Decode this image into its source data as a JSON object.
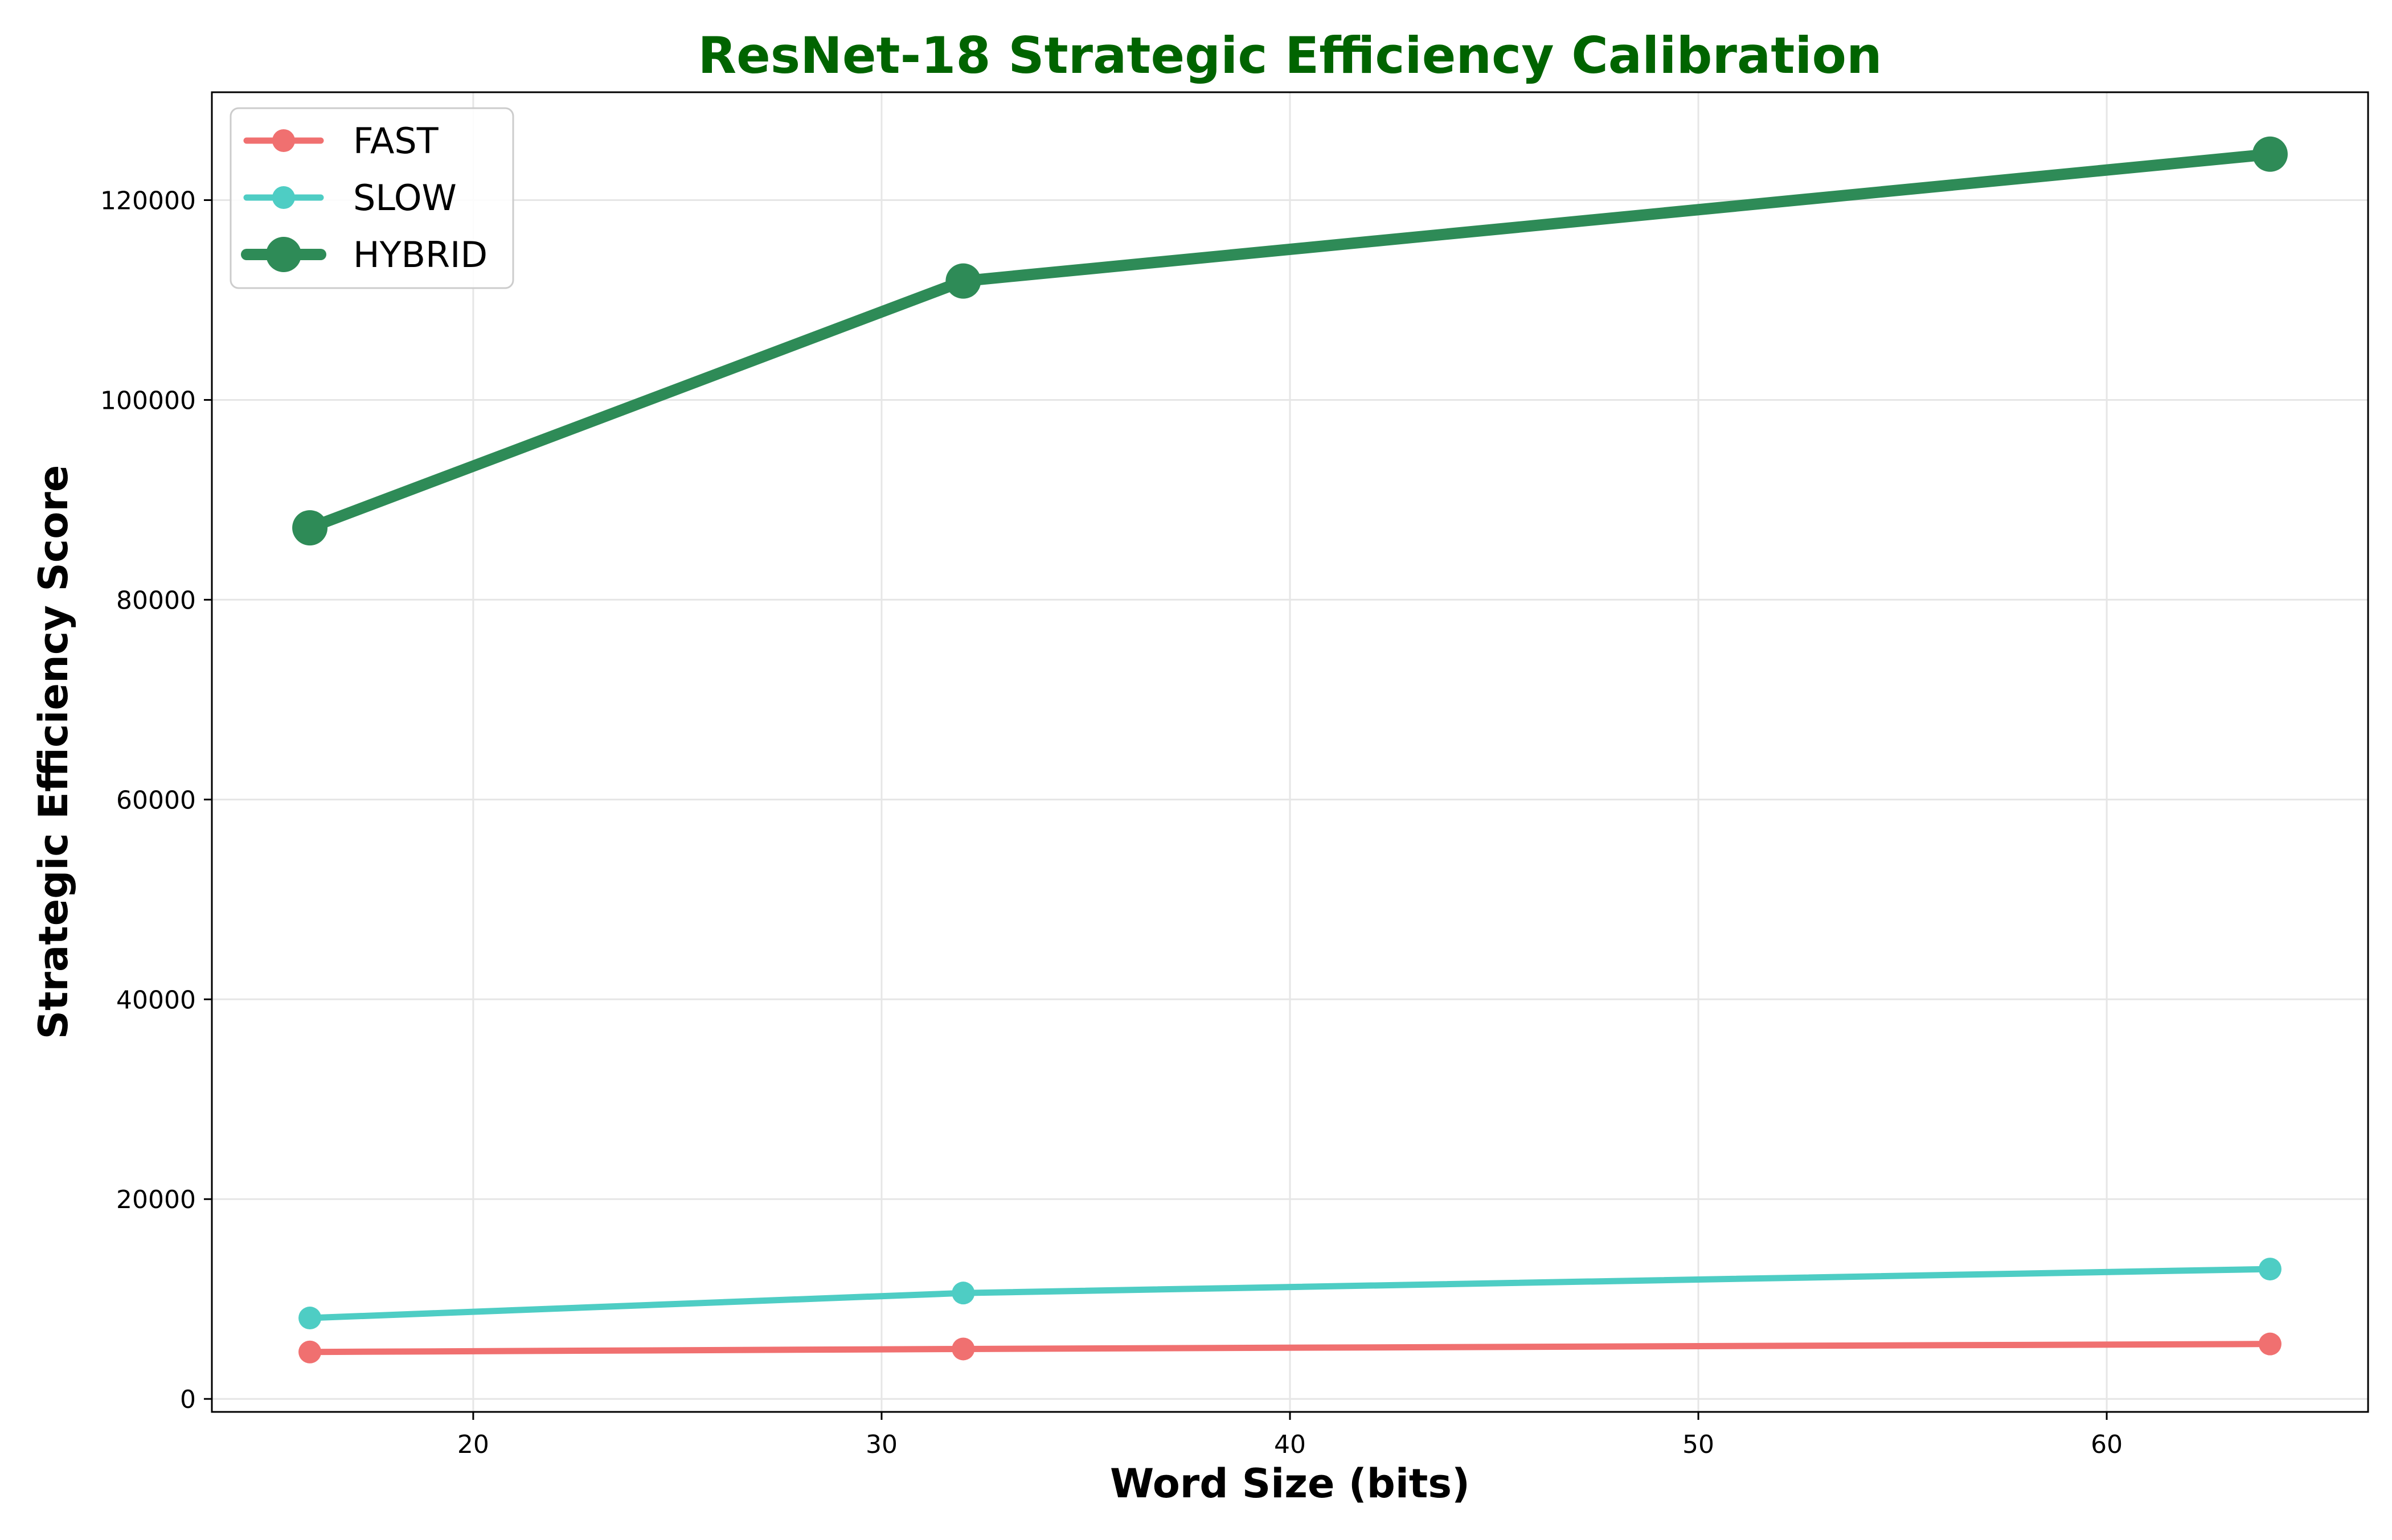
{
  "chart_data": {
    "type": "line",
    "title": "ResNet-18 Strategic Efficiency Calibration",
    "xlabel": "Word Size (bits)",
    "ylabel": "Strategic Efficiency Score",
    "x": [
      16,
      32,
      64
    ],
    "xlim": [
      13.6,
      66.4
    ],
    "ylim": [
      -1300,
      130800
    ],
    "xticks": [
      20,
      30,
      40,
      50,
      60
    ],
    "yticks": [
      0,
      20000,
      40000,
      60000,
      80000,
      100000,
      120000
    ],
    "grid": true,
    "legend_position": "upper left",
    "series": [
      {
        "name": "FAST",
        "color": "#f07070",
        "values": [
          4700,
          5000,
          5500
        ]
      },
      {
        "name": "SLOW",
        "color": "#4ecdc4",
        "values": [
          8100,
          10600,
          13000
        ]
      },
      {
        "name": "HYBRID",
        "color": "#2e8b57",
        "values": [
          87200,
          111900,
          124600
        ]
      }
    ],
    "title_color": "#006400"
  }
}
